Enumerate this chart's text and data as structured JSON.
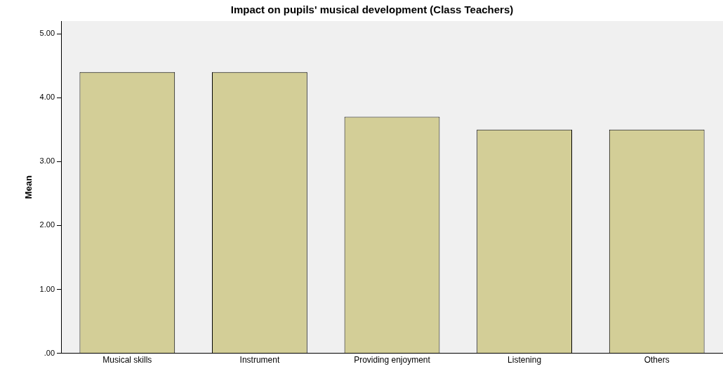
{
  "chart_data": {
    "type": "bar",
    "title": "Impact on pupils' musical development (Class Teachers)",
    "ylabel": "Mean",
    "categories": [
      "Musical skills",
      "Instrument",
      "Providing enjoyment",
      "Listening",
      "Others"
    ],
    "values": [
      4.4,
      4.4,
      3.7,
      3.5,
      3.5
    ],
    "color": "#d3ce97",
    "ylim": [
      0,
      5.2
    ],
    "yticks": [
      {
        "value": 0,
        "label": ".00"
      },
      {
        "value": 1,
        "label": "1.00"
      },
      {
        "value": 2,
        "label": "2.00"
      },
      {
        "value": 3,
        "label": "3.00"
      },
      {
        "value": 4,
        "label": "4.00"
      },
      {
        "value": 5,
        "label": "5.00"
      }
    ],
    "grid": false,
    "legend": false
  }
}
